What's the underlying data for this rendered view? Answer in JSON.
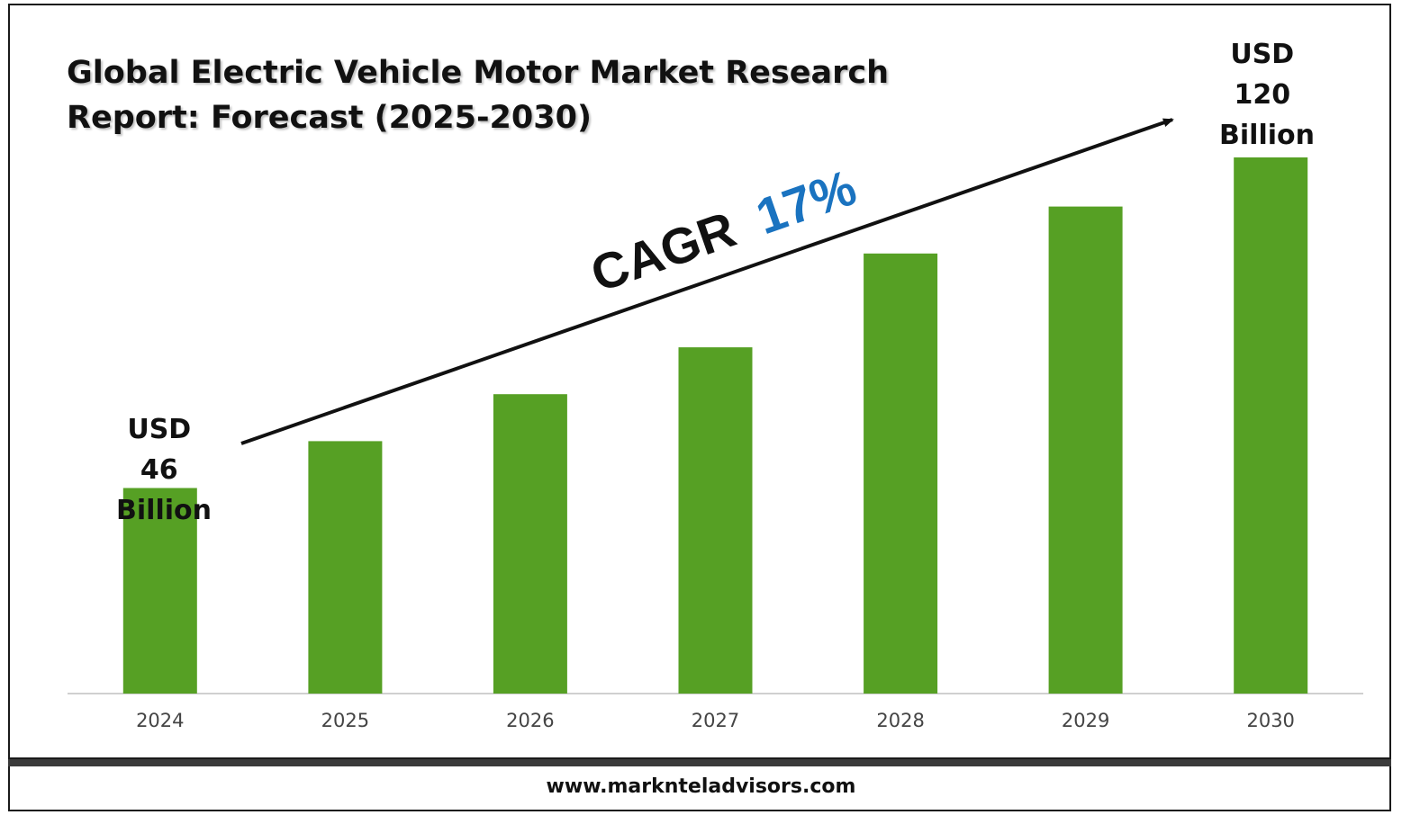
{
  "chart_data": {
    "type": "bar",
    "title": "Global Electric Vehicle Motor Market Research Report: Forecast (2025-2030)",
    "xlabel": "",
    "ylabel": "",
    "categories": [
      "2024",
      "2025",
      "2026",
      "2027",
      "2028",
      "2029",
      "2030"
    ],
    "values": [
      46,
      56.5,
      67,
      77.5,
      98.5,
      109,
      120
    ],
    "ylim": [
      0,
      135
    ],
    "grid": false,
    "legend": "none",
    "bar_color": "#56a024",
    "annotations": {
      "start_label": [
        "USD",
        "46",
        "Billion"
      ],
      "end_label": [
        "USD",
        "120",
        "Billion"
      ],
      "cagr_prefix": "CAGR",
      "cagr_value": "17%",
      "cagr_color": "#1a73c0"
    }
  },
  "footer": {
    "website": "www.marknteladvisors.com"
  }
}
